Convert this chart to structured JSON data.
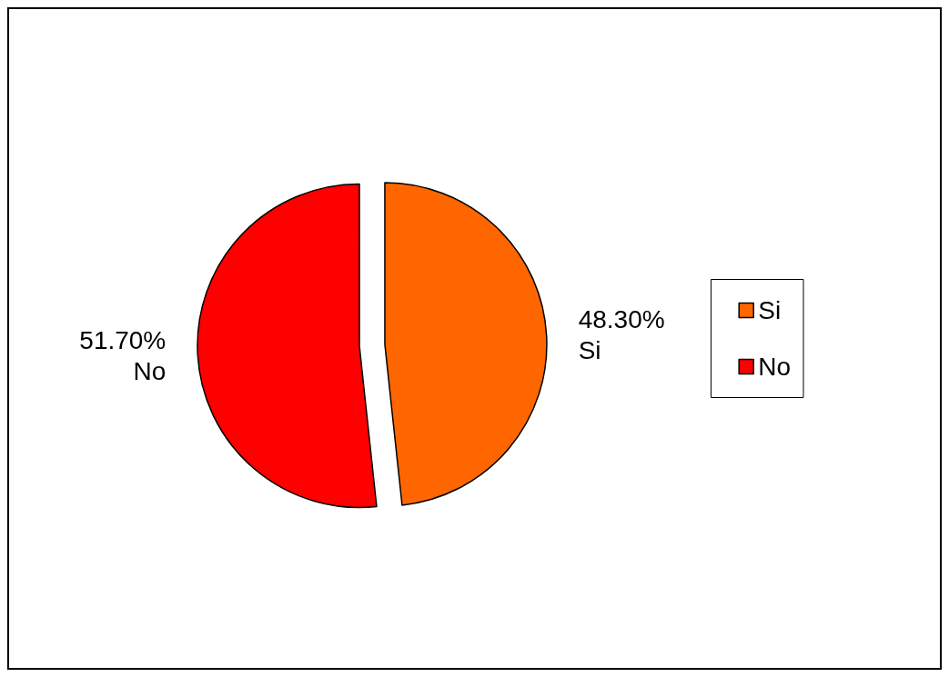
{
  "chart_data": {
    "type": "pie",
    "categories": [
      "Si",
      "No"
    ],
    "values": [
      48.3,
      51.7
    ],
    "colors": [
      "#ff6600",
      "#ff0000"
    ],
    "value_labels": [
      "48.30%",
      "51.70%"
    ],
    "legend": "right"
  }
}
